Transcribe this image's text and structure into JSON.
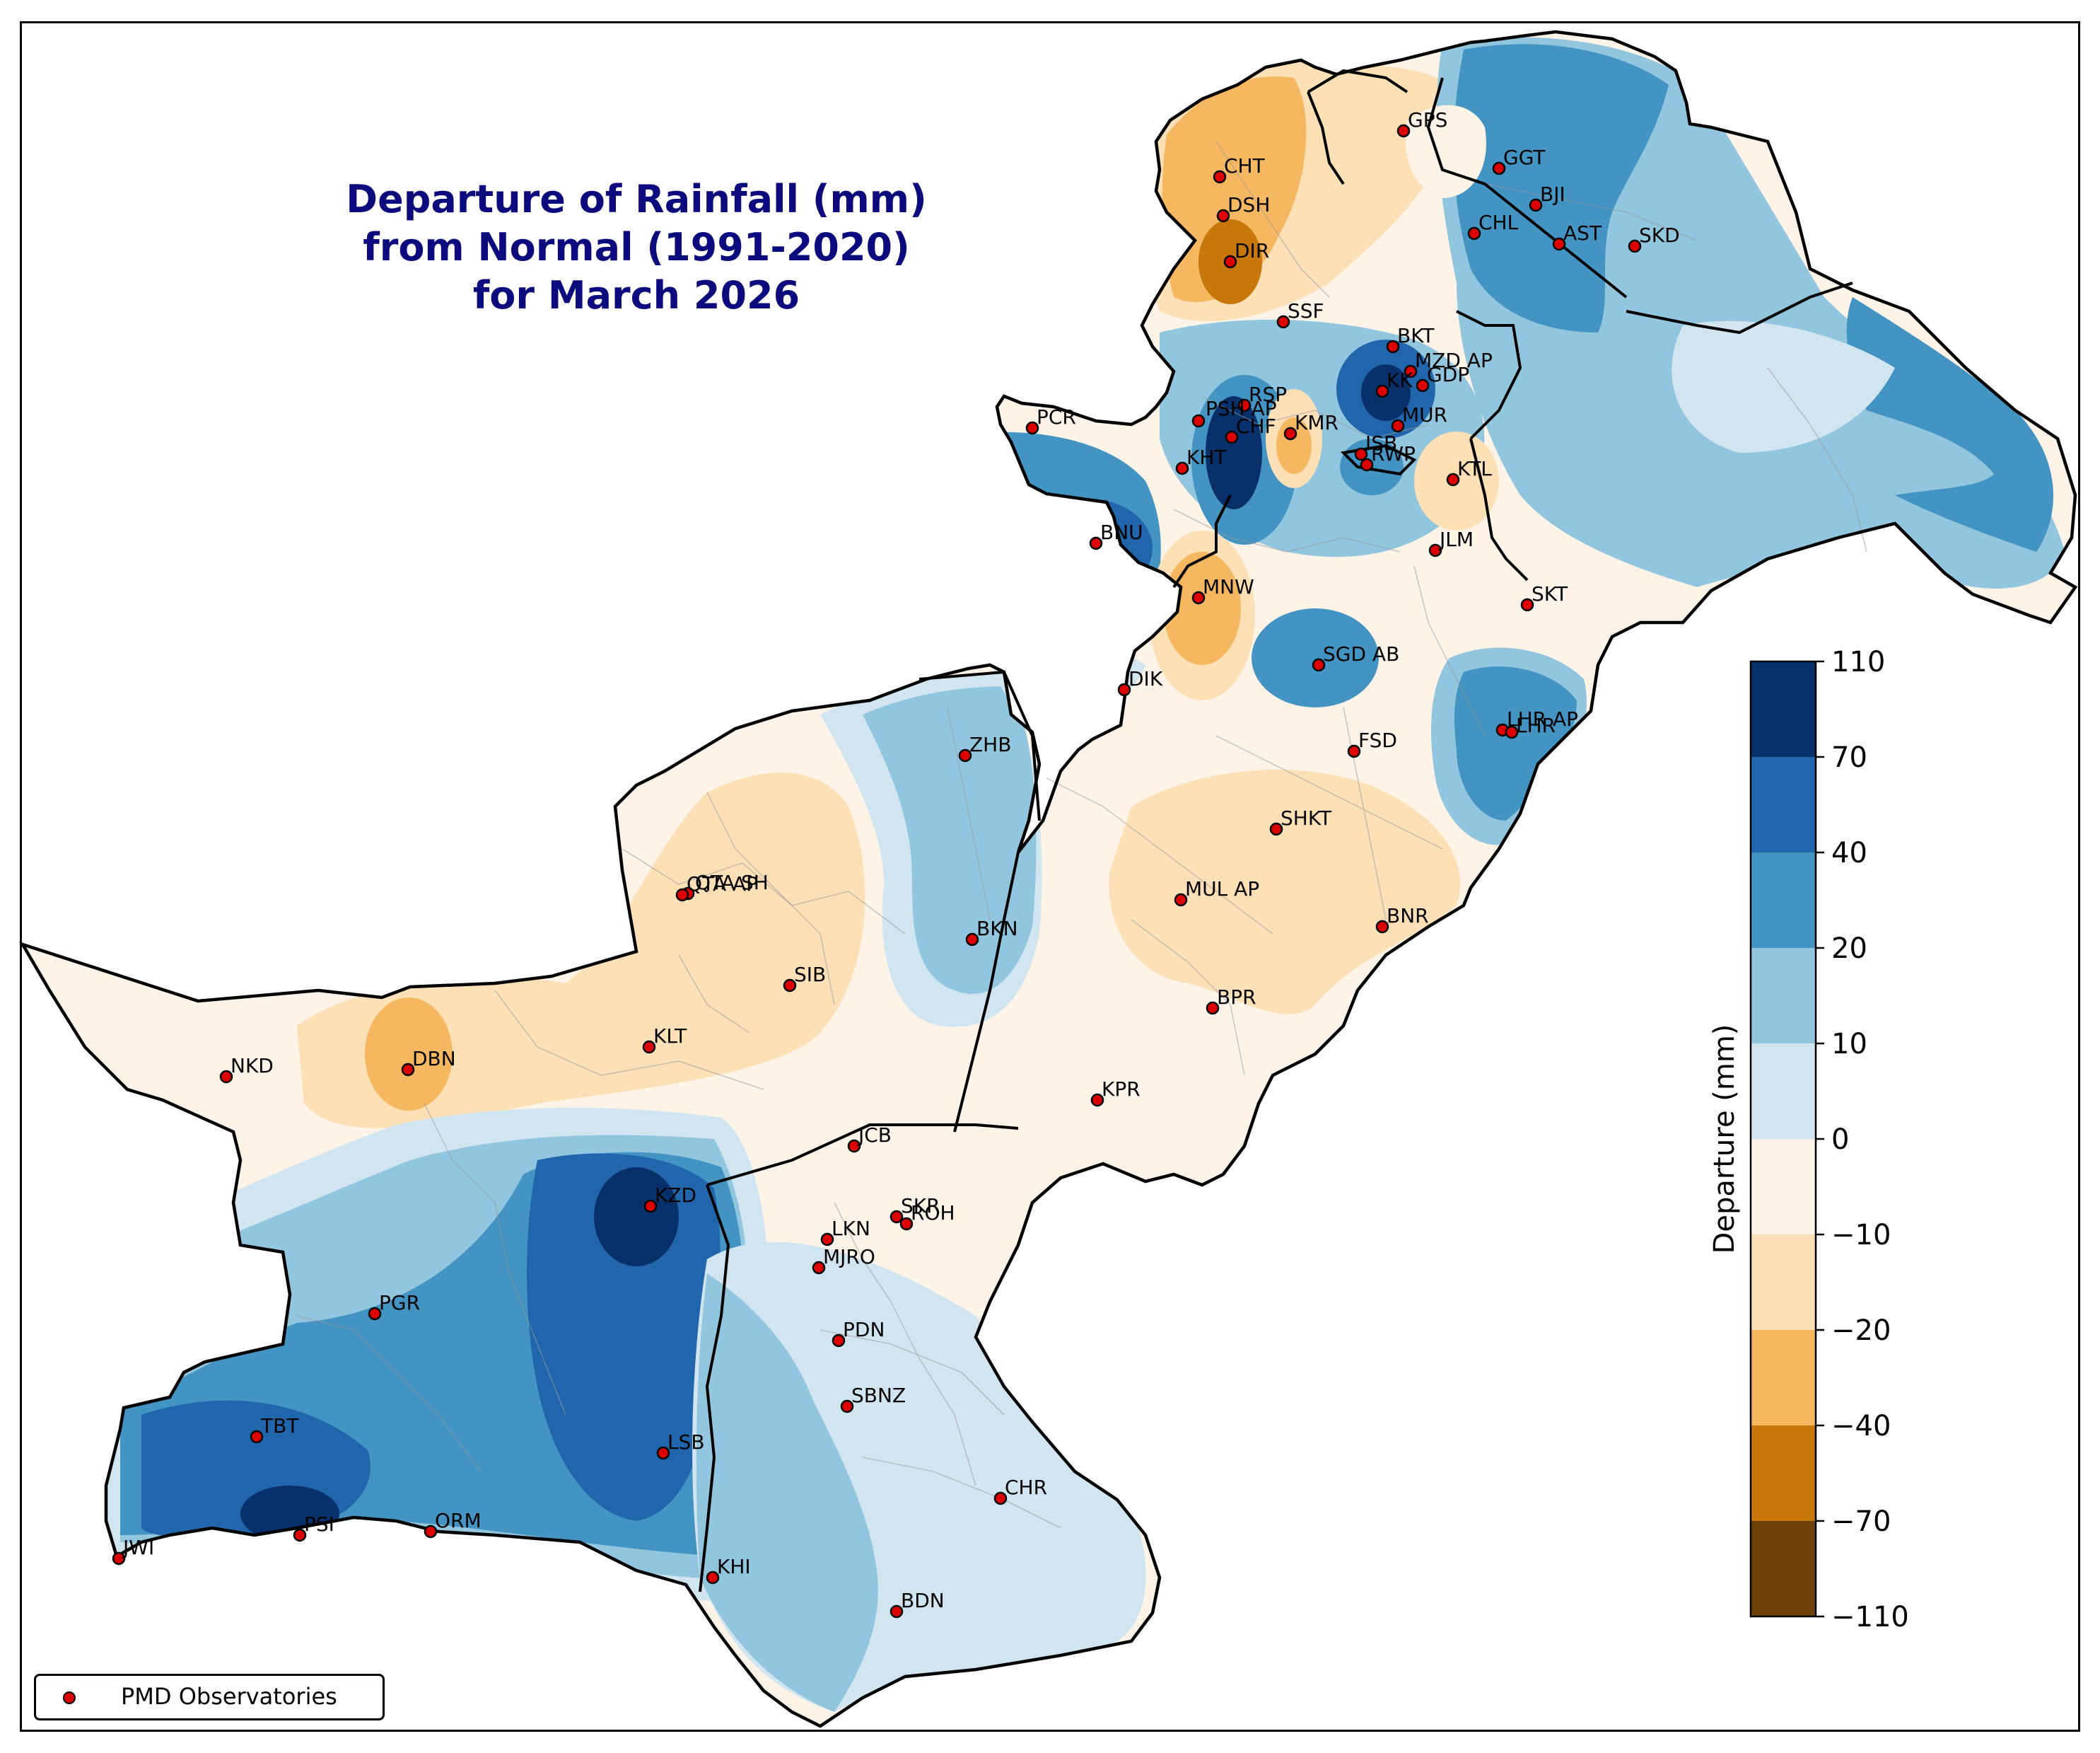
{
  "title": {
    "line1": "Departure of Rainfall (mm)",
    "line2": "from Normal (1991-2020)",
    "line3": "for March 2026"
  },
  "legend": {
    "label": "PMD Observatories",
    "marker_color": "#dd0000"
  },
  "colorbar": {
    "label": "Departure (mm)",
    "ticks": [
      "110",
      "70",
      "40",
      "20",
      "10",
      "0",
      "−10",
      "−20",
      "−40",
      "−70",
      "−110"
    ],
    "colors": [
      "#08306b",
      "#2166ac",
      "#4393c3",
      "#92c5de",
      "#d1e5f0",
      "#fdf3e7",
      "#fde0b6",
      "#f5b861",
      "#c8770a",
      "#6e400a"
    ]
  },
  "stations": [
    {
      "code": "GPS"
    },
    {
      "code": "CHT"
    },
    {
      "code": "GGT"
    },
    {
      "code": "DSH"
    },
    {
      "code": "BJI"
    },
    {
      "code": "CHL"
    },
    {
      "code": "AST"
    },
    {
      "code": "SKD"
    },
    {
      "code": "DIR"
    },
    {
      "code": "SSF"
    },
    {
      "code": "BKT"
    },
    {
      "code": "MZD AP"
    },
    {
      "code": "GDP"
    },
    {
      "code": "KK"
    },
    {
      "code": "RSP"
    },
    {
      "code": "PSH AP"
    },
    {
      "code": "PCR"
    },
    {
      "code": "CHF"
    },
    {
      "code": "KMR"
    },
    {
      "code": "MUR"
    },
    {
      "code": "ISB"
    },
    {
      "code": "RWP"
    },
    {
      "code": "KHT"
    },
    {
      "code": "KTL"
    },
    {
      "code": "BNU"
    },
    {
      "code": "JLM"
    },
    {
      "code": "MNW"
    },
    {
      "code": "SKT"
    },
    {
      "code": "SGD AB"
    },
    {
      "code": "DIK"
    },
    {
      "code": "LHR AP"
    },
    {
      "code": "LHR"
    },
    {
      "code": "FSD"
    },
    {
      "code": "ZHB"
    },
    {
      "code": "SHKT"
    },
    {
      "code": "QTA SH"
    },
    {
      "code": "QTA AP"
    },
    {
      "code": "MUL AP"
    },
    {
      "code": "BNR"
    },
    {
      "code": "BKN"
    },
    {
      "code": "SIB"
    },
    {
      "code": "BPR"
    },
    {
      "code": "KLT"
    },
    {
      "code": "NKD"
    },
    {
      "code": "DBN"
    },
    {
      "code": "KPR"
    },
    {
      "code": "JCB"
    },
    {
      "code": "KZD"
    },
    {
      "code": "SKR"
    },
    {
      "code": "ROH"
    },
    {
      "code": "LKN"
    },
    {
      "code": "MJRO"
    },
    {
      "code": "PGR"
    },
    {
      "code": "PDN"
    },
    {
      "code": "SBNZ"
    },
    {
      "code": "TBT"
    },
    {
      "code": "LSB"
    },
    {
      "code": "CHR"
    },
    {
      "code": "PSI"
    },
    {
      "code": "ORM"
    },
    {
      "code": "JWI"
    },
    {
      "code": "KHI"
    },
    {
      "code": "BDN"
    }
  ],
  "marker_colors": {
    "dot": "#dd0000",
    "outline": "#000000"
  }
}
